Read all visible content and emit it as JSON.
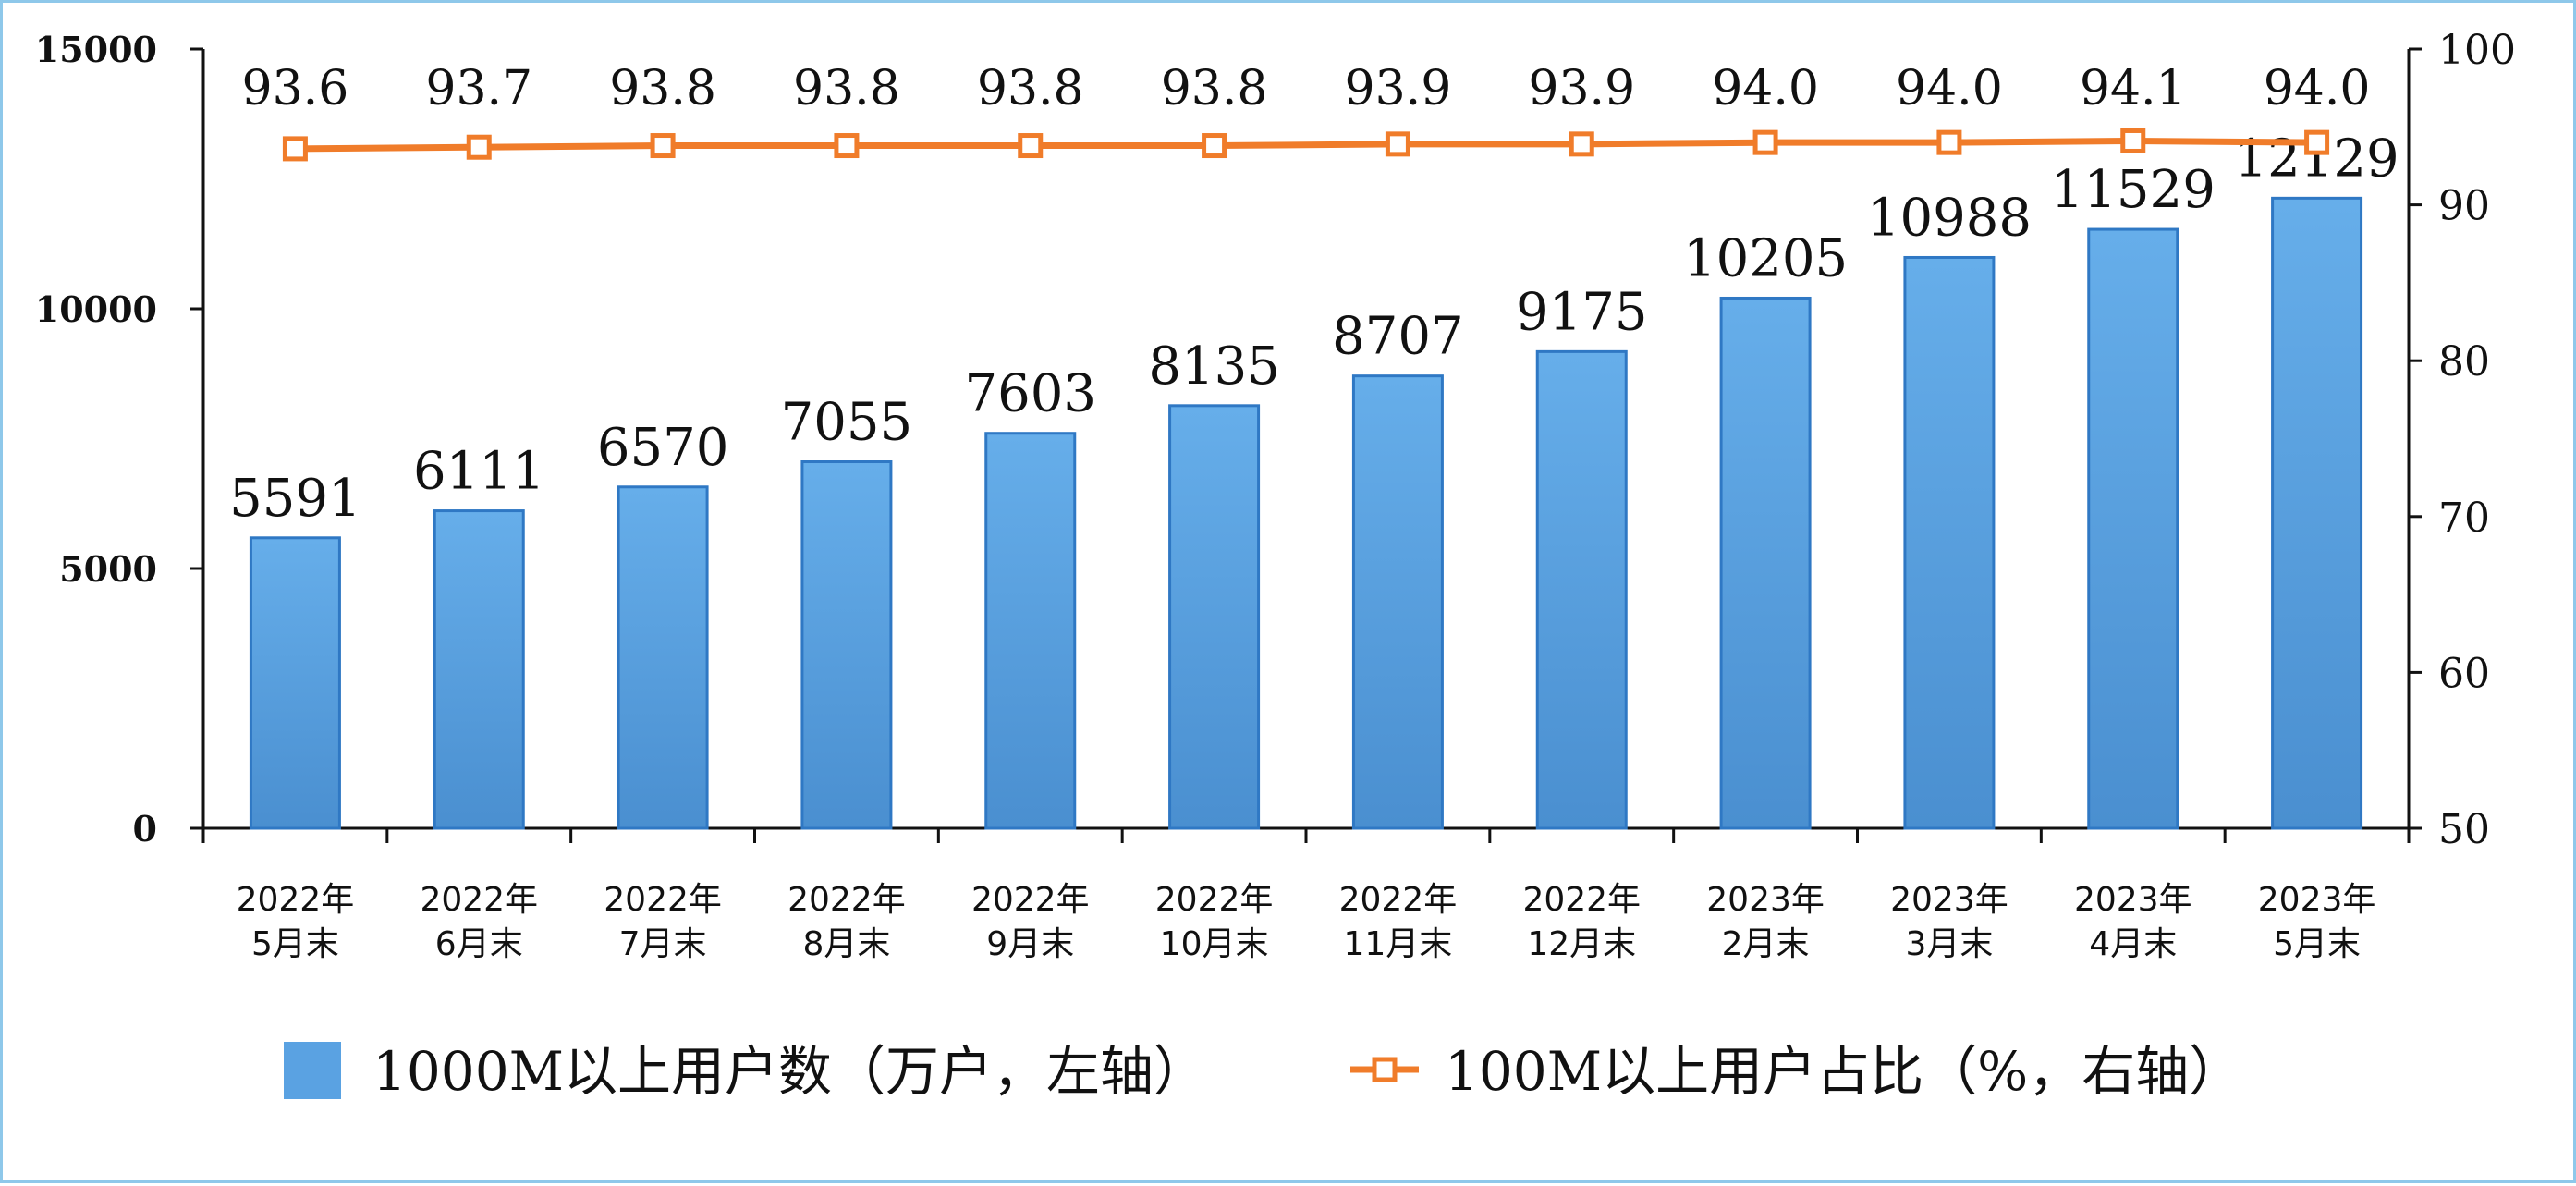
{
  "chart_data": {
    "type": "bar",
    "categories": [
      [
        "2022年",
        "5月末"
      ],
      [
        "2022年",
        "6月末"
      ],
      [
        "2022年",
        "7月末"
      ],
      [
        "2022年",
        "8月末"
      ],
      [
        "2022年",
        "9月末"
      ],
      [
        "2022年",
        "10月末"
      ],
      [
        "2022年",
        "11月末"
      ],
      [
        "2022年",
        "12月末"
      ],
      [
        "2023年",
        "2月末"
      ],
      [
        "2023年",
        "3月末"
      ],
      [
        "2023年",
        "4月末"
      ],
      [
        "2023年",
        "5月末"
      ]
    ],
    "series": [
      {
        "name": "1000M以上用户数（万户，左轴）",
        "type": "bar",
        "axis": "left",
        "color": "#5aa2e2",
        "values": [
          5591,
          6111,
          6570,
          7055,
          7603,
          8135,
          8707,
          9175,
          10205,
          10988,
          11529,
          12129
        ]
      },
      {
        "name": "100M以上用户占比（%，右轴）",
        "type": "line",
        "axis": "right",
        "color": "#f07c2a",
        "values": [
          93.6,
          93.7,
          93.8,
          93.8,
          93.8,
          93.8,
          93.9,
          93.9,
          94.0,
          94.0,
          94.1,
          94.0
        ],
        "labels": [
          "93.6",
          "93.7",
          "93.8",
          "93.8",
          "93.8",
          "93.8",
          "93.9",
          "93.9",
          "94.0",
          "94.0",
          "94.1",
          "94.0"
        ]
      }
    ],
    "y_left": {
      "min": 0,
      "max": 15000,
      "ticks": [
        0,
        5000,
        10000,
        15000
      ]
    },
    "y_right": {
      "min": 50,
      "max": 100,
      "ticks": [
        50,
        60,
        70,
        80,
        90,
        100
      ]
    },
    "legend_position": "bottom",
    "grid": false
  }
}
